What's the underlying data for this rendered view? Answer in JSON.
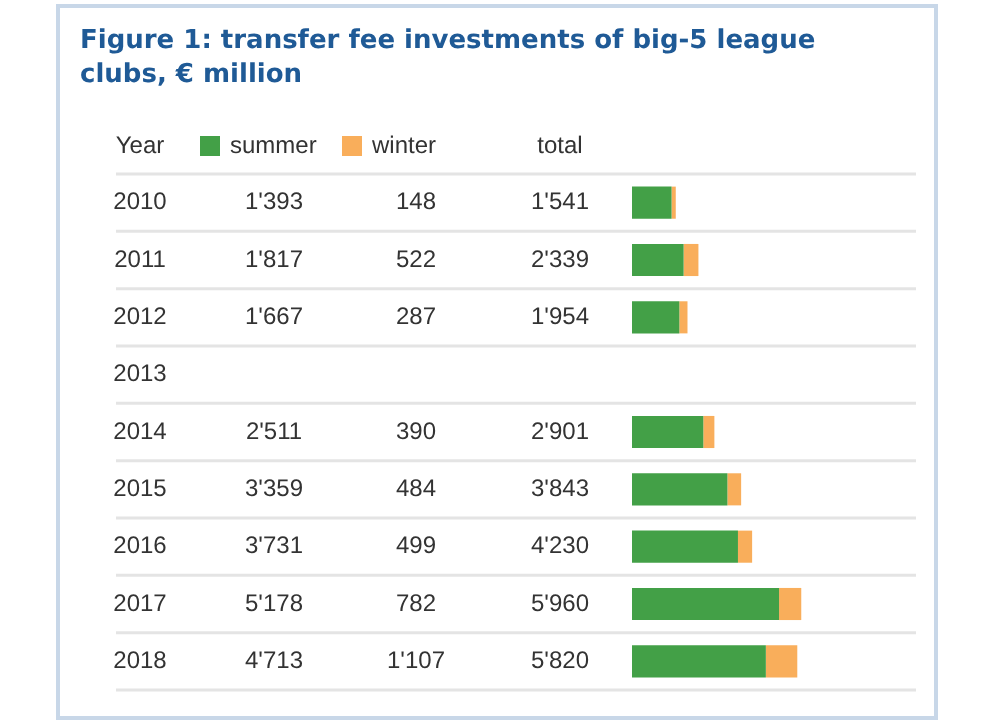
{
  "chart_data": {
    "type": "bar",
    "orientation": "horizontal",
    "stacked": true,
    "title": "Figure 1: transfer fee investments of big-5 league clubs, € million",
    "legend_title": "Year",
    "categories": [
      "2010",
      "2011",
      "2012",
      "2013",
      "2014",
      "2015",
      "2016",
      "2017",
      "2018"
    ],
    "series": [
      {
        "name": "summer",
        "color": "#43a047",
        "values": [
          1393,
          1817,
          1667,
          null,
          2511,
          3359,
          3731,
          5178,
          4713
        ],
        "value_labels": [
          "1'393",
          "1'817",
          "1'667",
          null,
          "2'511",
          "3'359",
          "3'731",
          "5'178",
          "4'713"
        ]
      },
      {
        "name": "winter",
        "color": "#f9ae5b",
        "values": [
          148,
          522,
          287,
          null,
          390,
          484,
          499,
          782,
          1107
        ],
        "value_labels": [
          "148",
          "522",
          "287",
          null,
          "390",
          "484",
          "499",
          "782",
          "1'107"
        ]
      }
    ],
    "totals": [
      "1'541",
      "2'339",
      "1'954",
      null,
      "2'901",
      "3'843",
      "4'230",
      "5'960",
      "5'820"
    ],
    "annotations": [
      "total"
    ],
    "xlim": [
      0,
      10000
    ],
    "tick_labels": "y",
    "grid": "y",
    "legend": "top"
  }
}
